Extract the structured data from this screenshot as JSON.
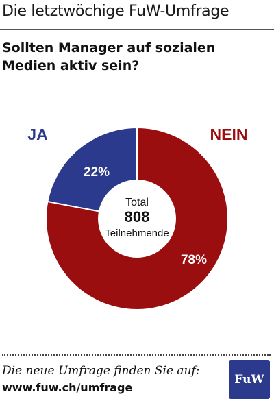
{
  "header": {
    "title": "Die letztwöchige FuW-Umfrage"
  },
  "question": {
    "line1": "Sollten Manager auf sozialen",
    "line2": "Medien aktiv sein?"
  },
  "colors": {
    "ja": "#2b3a8c",
    "nein": "#9b0e10",
    "text": "#111111"
  },
  "chart_data": {
    "type": "pie",
    "title": "Sollten Manager auf sozialen Medien aktiv sein?",
    "categories": [
      "JA",
      "NEIN"
    ],
    "values": [
      22,
      78
    ],
    "value_labels": [
      "22%",
      "78%"
    ],
    "center_label": {
      "line1": "Total",
      "total": "808",
      "line3": "Teilnehmende"
    }
  },
  "footer": {
    "text": "Die neue Umfrage finden Sie auf:",
    "url": "www.fuw.ch/umfrage",
    "logo": "FuW"
  }
}
